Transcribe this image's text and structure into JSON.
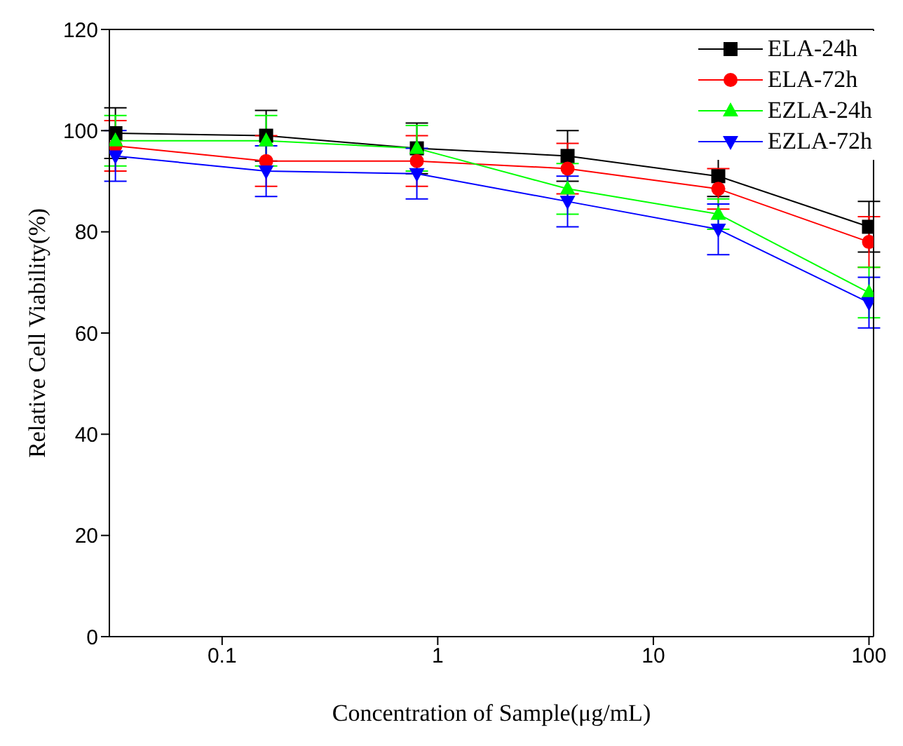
{
  "chart_data": {
    "type": "line",
    "xlabel": "Concentration of Sample(μg/mL)",
    "ylabel": "Relative Cell Viability(%)",
    "log": "x",
    "x": [
      0.032,
      0.16,
      0.8,
      4,
      20,
      100
    ],
    "xlim": [
      0.03,
      105
    ],
    "xticks": [
      0.1,
      1,
      10,
      100
    ],
    "ylim": [
      0,
      120
    ],
    "yticks": [
      0,
      20,
      40,
      60,
      80,
      100,
      120
    ],
    "grid": false,
    "legend": "top right",
    "line_style": "solid",
    "series": [
      {
        "name": "ELA-24h",
        "color": "#000000",
        "marker": "square",
        "values": [
          99.5,
          99,
          96.5,
          95,
          91,
          81
        ],
        "errors": [
          5,
          5,
          5,
          5,
          4,
          5
        ]
      },
      {
        "name": "ELA-72h",
        "color": "#ff0000",
        "marker": "circle",
        "values": [
          97,
          94,
          94,
          92.5,
          88.5,
          78
        ],
        "errors": [
          5,
          5,
          5,
          5,
          4,
          5
        ]
      },
      {
        "name": "EZLA-24h",
        "color": "#00ff00",
        "marker": "triangle",
        "values": [
          98,
          98,
          96.5,
          88.5,
          83.5,
          68
        ],
        "errors": [
          5,
          5,
          4.5,
          5,
          3,
          5
        ]
      },
      {
        "name": "EZLA-72h",
        "color": "#0000ff",
        "marker": "triangle-down",
        "values": [
          95,
          92,
          91.5,
          86,
          80.5,
          66
        ],
        "errors": [
          5,
          5,
          5,
          5,
          5,
          5
        ]
      }
    ]
  }
}
